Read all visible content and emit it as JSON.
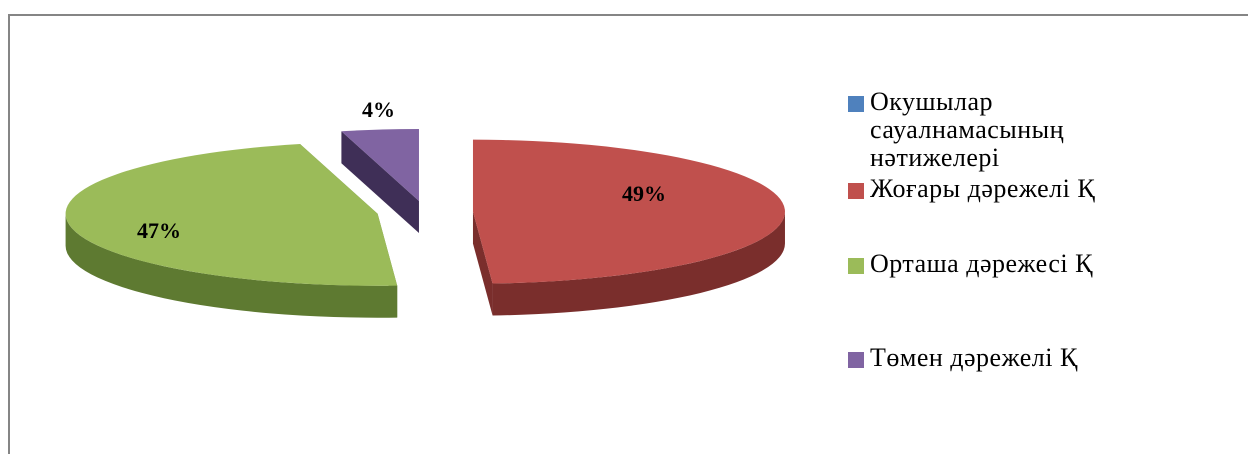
{
  "chart_data": {
    "type": "pie",
    "title": "",
    "legend_position": "right",
    "legend": [
      {
        "label": "Окушылар сауалнамасының нәтижелері",
        "color": "#4F81BD",
        "lines": [
          "Окушылар",
          "сауалнамасының",
          "нәтижелері"
        ]
      },
      {
        "label": "Жоғары дәрежелі Қ",
        "color": "#C0504D",
        "lines": [
          "Жоғары дәрежелі Қ"
        ]
      },
      {
        "label": "Орташа дәрежесі Қ",
        "color": "#9BBB59",
        "lines": [
          "Орташа дәрежесі Қ"
        ]
      },
      {
        "label": "Төмен дәрежелі Қ",
        "color": "#8064A2",
        "lines": [
          "Төмен дәрежелі Қ"
        ]
      }
    ],
    "slices": [
      {
        "name": "Жоғары дәрежелі Қ",
        "value": 49,
        "label": "49%",
        "color": "#C0504D",
        "side_color": "#7A2E2C"
      },
      {
        "name": "Орташа дәрежесі Қ",
        "value": 47,
        "label": "47%",
        "color": "#9BBB59",
        "side_color": "#5E7A31"
      },
      {
        "name": "Төмен дәрежелі Қ",
        "value": 4,
        "label": "4%",
        "color": "#8064A2",
        "side_color": "#3F2F57"
      }
    ]
  }
}
